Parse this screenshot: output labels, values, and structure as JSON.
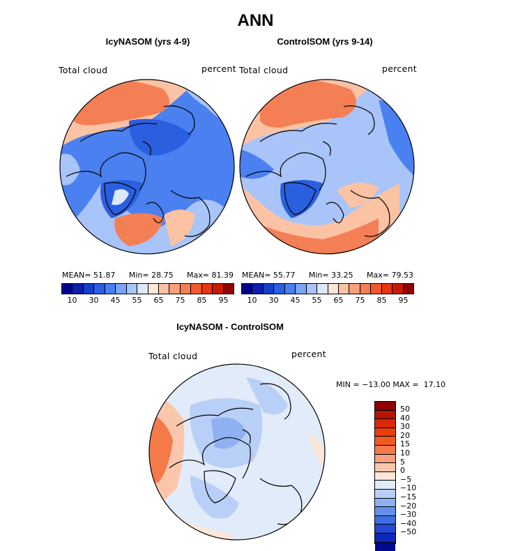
{
  "title": "ANN",
  "panels": [
    {
      "title": "IcyNASOM (yrs 4-9)",
      "var_label": "Total cloud",
      "units": "percent",
      "stats": {
        "mean_label": "MEAN=",
        "mean": "51.87",
        "min_label": "Min=",
        "min": "28.75",
        "max_label": "Max=",
        "max": "81.39"
      }
    },
    {
      "title": "ControlSOM (yrs 9-14)",
      "var_label": "Total cloud",
      "units": "percent",
      "stats": {
        "mean_label": "MEAN=",
        "mean": "55.77",
        "min_label": "Min=",
        "min": "33.25",
        "max_label": "Max=",
        "max": "79.53"
      }
    }
  ],
  "colorbar_abs": {
    "colors": [
      "#00008f",
      "#0a1fb0",
      "#1440c8",
      "#2a5fe0",
      "#4a80f0",
      "#7aa4f4",
      "#a8c4f8",
      "#dde8fc",
      "#fde6d6",
      "#fbc3a4",
      "#f9a07a",
      "#f47f55",
      "#f05a2e",
      "#e8360f",
      "#c81a05",
      "#8f0000"
    ],
    "ticks": [
      "10",
      "30",
      "45",
      "55",
      "65",
      "75",
      "85",
      "95"
    ]
  },
  "diff": {
    "title": "IcyNASOM - ControlSOM",
    "var_label": "Total cloud",
    "units": "percent",
    "minmax": "MIN = −13.00 MAX =  17.10"
  },
  "colorbar_diff": {
    "colors": [
      "#8f0000",
      "#b81404",
      "#d82a06",
      "#ea3e0c",
      "#f25a22",
      "#f57a4a",
      "#f8a07c",
      "#fbc7ac",
      "#fde6d8",
      "#e2ebf9",
      "#b8cff7",
      "#8fb1f2",
      "#6490ec",
      "#3d6de4",
      "#2248d4",
      "#1028b8",
      "#020a8f"
    ],
    "ticks": [
      "50",
      "40",
      "30",
      "20",
      "15",
      "10",
      "5",
      "0",
      "−5",
      "−10",
      "−15",
      "−20",
      "−30",
      "−40",
      "−50"
    ]
  },
  "colors": {
    "blue_deep": "#2a5fe0",
    "blue_mid": "#4a80f0",
    "blue_light": "#a8c4f8",
    "red_light": "#fbc3a4",
    "red_mid": "#f47f55"
  }
}
